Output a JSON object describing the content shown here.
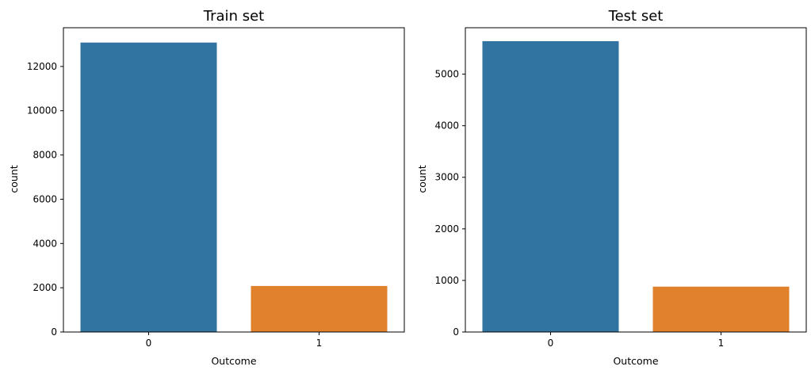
{
  "chart_data": [
    {
      "type": "bar",
      "title": "Train set",
      "xlabel": "Outcome",
      "ylabel": "count",
      "categories": [
        "0",
        "1"
      ],
      "values": [
        13080,
        2080
      ],
      "ylim": [
        0,
        13750
      ],
      "yticks": [
        0,
        2000,
        4000,
        6000,
        8000,
        10000,
        12000
      ],
      "colors": [
        "#3274a1",
        "#e1812c"
      ],
      "grid": false
    },
    {
      "type": "bar",
      "title": "Test set",
      "xlabel": "Outcome",
      "ylabel": "count",
      "categories": [
        "0",
        "1"
      ],
      "values": [
        5640,
        880
      ],
      "ylim": [
        0,
        5900
      ],
      "yticks": [
        0,
        1000,
        2000,
        3000,
        4000,
        5000
      ],
      "colors": [
        "#3274a1",
        "#e1812c"
      ],
      "grid": false
    }
  ]
}
